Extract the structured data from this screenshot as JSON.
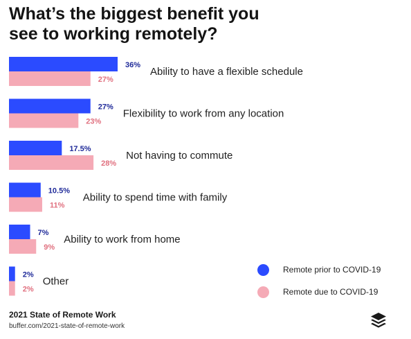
{
  "header": {
    "title_line1": "What’s the biggest benefit you",
    "title_line2": "see to working remotely?"
  },
  "chart_data": {
    "type": "bar",
    "orientation": "horizontal",
    "title": "What’s the biggest benefit you see to working remotely?",
    "categories": [
      "Ability to have a flexible schedule",
      "Flexibility to work from any location",
      "Not having to commute",
      "Ability to spend time with family",
      "Ability to work from home",
      "Other"
    ],
    "series": [
      {
        "name": "Remote prior to COVID-19",
        "color": "#2b4bff",
        "values": [
          36,
          27,
          17.5,
          10.5,
          7,
          2
        ],
        "labels": [
          "36%",
          "27%",
          "17.5%",
          "10.5%",
          "7%",
          "2%"
        ]
      },
      {
        "name": "Remote due to COVID-19",
        "color": "#f5aab6",
        "values": [
          27,
          23,
          28,
          11,
          9,
          2
        ],
        "labels": [
          "27%",
          "23%",
          "28%",
          "11%",
          "9%",
          "2%"
        ]
      }
    ],
    "label_colors": [
      "#1f2a99",
      "#e0707f"
    ],
    "xlim": [
      0,
      36
    ],
    "grid": false,
    "legend": "bottom-right"
  },
  "footer": {
    "source_title": "2021 State of Remote Work",
    "source_url": "buffer.com/2021-state-of-remote-work",
    "logo_icon": "buffer-stack-icon"
  }
}
